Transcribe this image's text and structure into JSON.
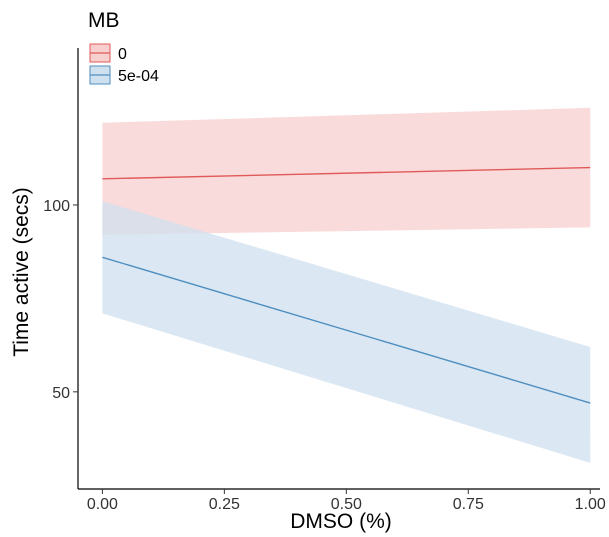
{
  "chart_data": {
    "type": "line",
    "xlabel": "DMSO (%)",
    "ylabel": "Time active (secs)",
    "xlim": [
      -0.05,
      1.02
    ],
    "ylim": [
      24,
      142
    ],
    "x_ticks": [
      0,
      0.25,
      0.5,
      0.75,
      1
    ],
    "x_tick_labels": [
      "0.00",
      "0.25",
      "0.50",
      "0.75",
      "1.00"
    ],
    "y_ticks": [
      50,
      100
    ],
    "y_tick_labels": [
      "50",
      "100"
    ],
    "grid": false,
    "legend": {
      "title": "MB",
      "placement": "top-left"
    },
    "series": [
      {
        "name": "0",
        "color": "#e05a5a",
        "fill": "#f8cfcf",
        "x": [
          0,
          1
        ],
        "y": [
          107,
          110
        ],
        "lower": [
          92,
          94
        ],
        "upper": [
          122,
          126
        ]
      },
      {
        "name": "5e-04",
        "color": "#4f8fc0",
        "fill": "#cfe0ef",
        "x": [
          0,
          1
        ],
        "y": [
          86,
          47
        ],
        "lower": [
          71,
          31
        ],
        "upper": [
          101,
          62
        ]
      }
    ]
  }
}
